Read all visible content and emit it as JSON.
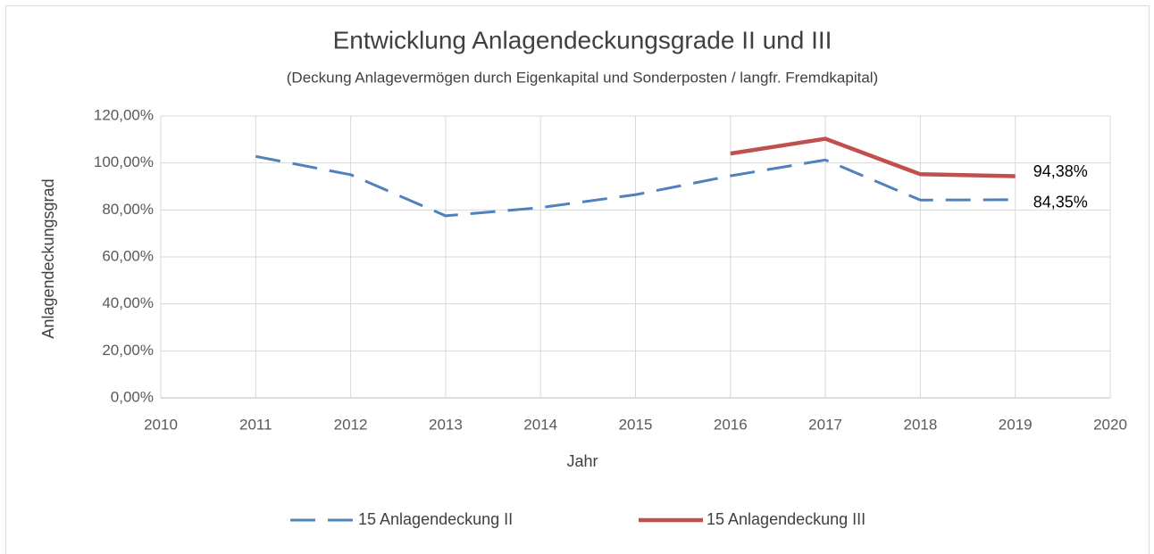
{
  "chart_data": {
    "type": "line",
    "title": "Entwicklung Anlagendeckungsgrade II und III",
    "subtitle": "(Deckung Anlagevermögen durch Eigenkapital und Sonderposten / langfr. Fremdkapital)",
    "x_label": "Jahr",
    "y_label": "Anlagendeckungsgrad",
    "x": [
      2011,
      2012,
      2013,
      2014,
      2015,
      2016,
      2017,
      2018,
      2019
    ],
    "series": [
      {
        "name": "15 Anlagendeckung II",
        "color": "#4f81bd",
        "dashed": true,
        "values": [
          102.8,
          95,
          77.5,
          81,
          86.5,
          94.5,
          101.3,
          84.2,
          84.35
        ],
        "value_labels": [
          null,
          null,
          null,
          null,
          null,
          null,
          null,
          null,
          "84,35%"
        ]
      },
      {
        "name": "15 Anlagendeckung III",
        "color": "#c0504d",
        "dashed": false,
        "values": [
          null,
          null,
          null,
          null,
          null,
          104,
          110.3,
          95.2,
          94.38
        ],
        "value_labels": [
          null,
          null,
          null,
          null,
          null,
          null,
          null,
          null,
          "94,38%"
        ]
      }
    ],
    "xlim": [
      2010,
      2020
    ],
    "xticks": [
      2010,
      2011,
      2012,
      2013,
      2014,
      2015,
      2016,
      2017,
      2018,
      2019,
      2020
    ],
    "ylim": [
      0,
      120
    ],
    "yticks": [
      {
        "value": 0,
        "label": "0,00%"
      },
      {
        "value": 20,
        "label": "20,00%"
      },
      {
        "value": 40,
        "label": "40,00%"
      },
      {
        "value": 60,
        "label": "60,00%"
      },
      {
        "value": 80,
        "label": "80,00%"
      },
      {
        "value": 100,
        "label": "100,00%"
      },
      {
        "value": 120,
        "label": "120,00%"
      }
    ],
    "grid": true,
    "legend": "bottom"
  }
}
